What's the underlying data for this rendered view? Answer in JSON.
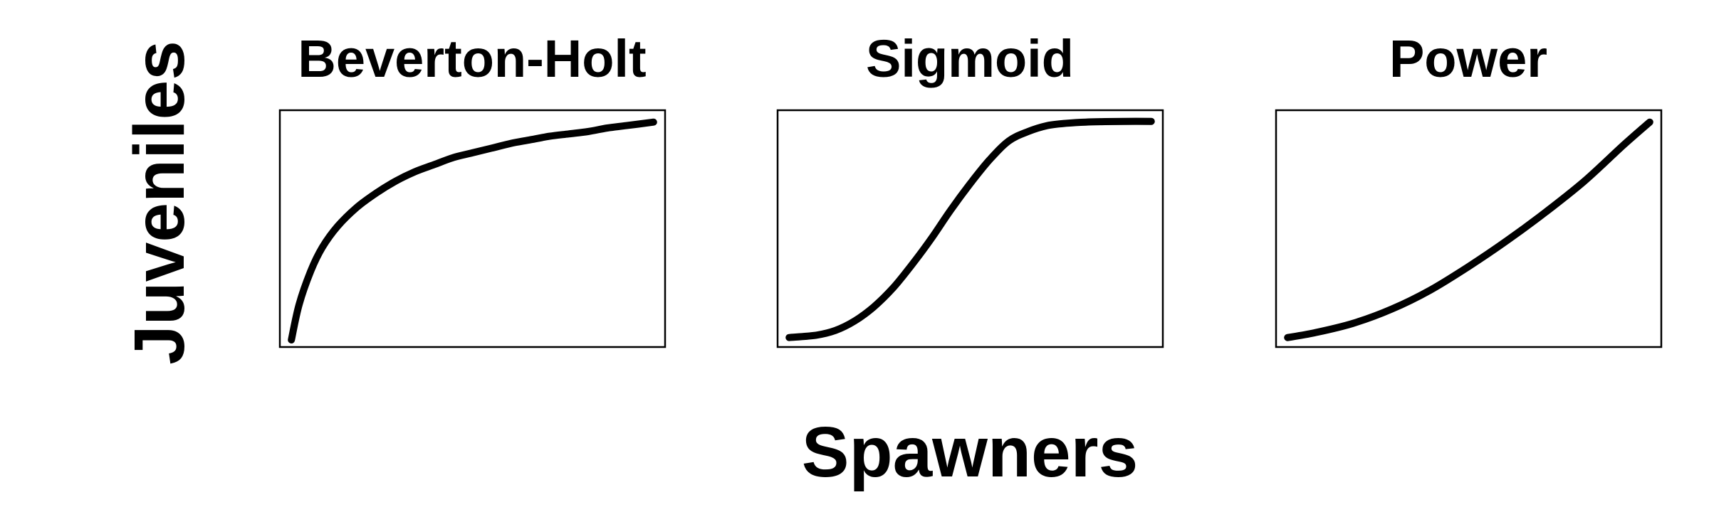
{
  "figure": {
    "xlabel": "Spawners",
    "ylabel": "Juveniles"
  },
  "chart_data": [
    {
      "type": "line",
      "title": "Beverton-Holt",
      "xlabel": "",
      "ylabel": "",
      "xlim": [
        0,
        10
      ],
      "ylim": [
        0,
        1
      ],
      "grid": false,
      "x": [
        0.3,
        0.5,
        0.8,
        1.1,
        1.5,
        2.0,
        2.5,
        3.0,
        3.5,
        4.0,
        4.5,
        5.0,
        5.5,
        6.0,
        6.5,
        7.0,
        7.5,
        8.0,
        8.5,
        9.0,
        9.7
      ],
      "series": [
        {
          "values": [
            0.03,
            0.18,
            0.32,
            0.42,
            0.51,
            0.59,
            0.65,
            0.7,
            0.74,
            0.77,
            0.8,
            0.82,
            0.84,
            0.86,
            0.875,
            0.89,
            0.9,
            0.91,
            0.925,
            0.935,
            0.95
          ]
        }
      ]
    },
    {
      "type": "line",
      "title": "Sigmoid",
      "xlabel": "",
      "ylabel": "",
      "xlim": [
        0,
        10
      ],
      "ylim": [
        0,
        1
      ],
      "grid": false,
      "x": [
        0.3,
        1.0,
        1.5,
        2.0,
        2.5,
        3.0,
        3.5,
        4.0,
        4.5,
        5.0,
        5.5,
        6.0,
        6.5,
        7.0,
        7.5,
        8.0,
        8.5,
        9.0,
        9.7
      ],
      "series": [
        {
          "values": [
            0.04,
            0.05,
            0.07,
            0.11,
            0.17,
            0.25,
            0.35,
            0.46,
            0.58,
            0.69,
            0.79,
            0.87,
            0.91,
            0.935,
            0.945,
            0.95,
            0.952,
            0.953,
            0.953
          ]
        }
      ]
    },
    {
      "type": "line",
      "title": "Power",
      "xlabel": "",
      "ylabel": "",
      "xlim": [
        0,
        10
      ],
      "ylim": [
        0,
        1
      ],
      "grid": false,
      "x": [
        0.3,
        1.0,
        2.0,
        3.0,
        4.0,
        5.0,
        6.0,
        7.0,
        8.0,
        9.0,
        9.7
      ],
      "series": [
        {
          "values": [
            0.04,
            0.06,
            0.1,
            0.16,
            0.24,
            0.34,
            0.45,
            0.57,
            0.7,
            0.85,
            0.95
          ]
        }
      ]
    }
  ]
}
